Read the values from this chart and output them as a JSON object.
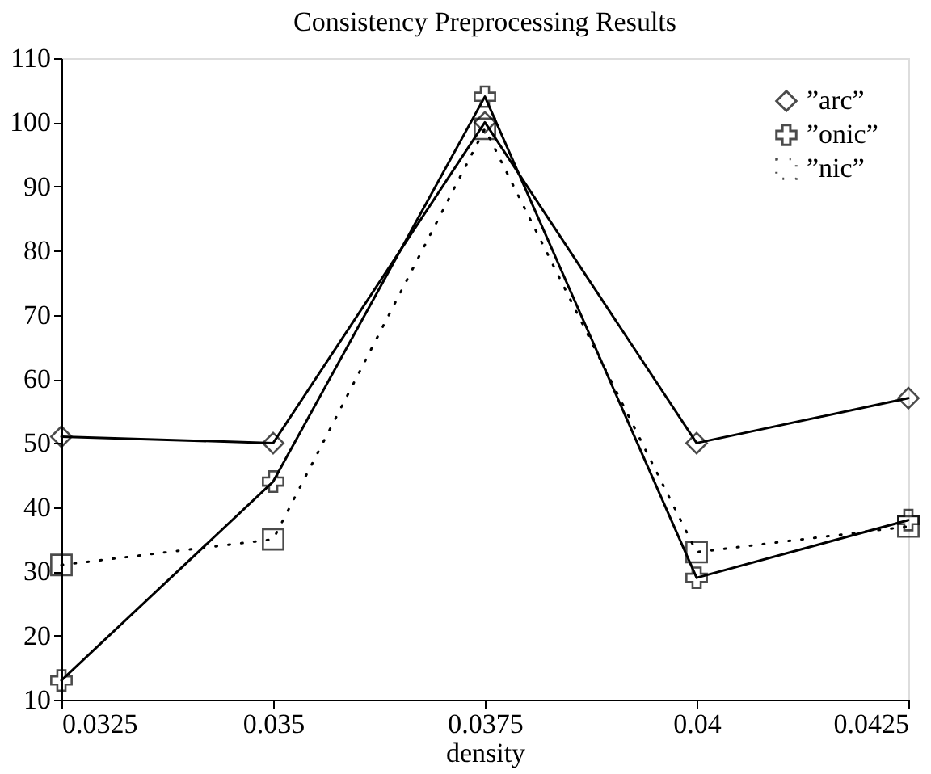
{
  "chart_data": {
    "type": "line",
    "title": "Consistency Preprocessing Results",
    "xlabel": "density",
    "x": [
      0.0325,
      0.035,
      0.0375,
      0.04,
      0.0425
    ],
    "series": [
      {
        "name": "”arc”",
        "color": "#000000",
        "marker": "diamond",
        "line_style": "solid",
        "values": [
          51,
          50,
          100,
          50,
          57
        ]
      },
      {
        "name": "”onic”",
        "color": "#000000",
        "marker": "cross",
        "line_style": "solid",
        "values": [
          13,
          44,
          104,
          29,
          38
        ]
      },
      {
        "name": "”nic”",
        "color": "#000000",
        "marker": "square",
        "line_style": "dotted",
        "values": [
          31,
          35,
          99,
          33,
          37
        ]
      }
    ],
    "xlim": [
      0.0325,
      0.0425
    ],
    "xticks": [
      0.0325,
      0.035,
      0.0375,
      0.04,
      0.0425
    ],
    "ylim": [
      10,
      110
    ],
    "yticks": [
      10,
      20,
      30,
      40,
      50,
      60,
      70,
      80,
      90,
      100,
      110
    ],
    "grid": false,
    "legend": "top right"
  }
}
